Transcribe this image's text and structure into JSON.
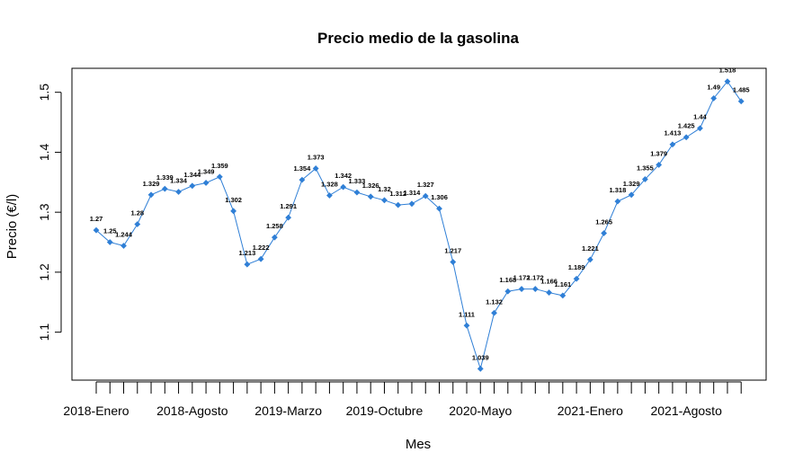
{
  "chart_data": {
    "type": "line",
    "title": "Precio medio de la gasolina",
    "xlabel": "Mes",
    "ylabel": "Precio (€/l)",
    "ylim": [
      1.02,
      1.54
    ],
    "y_ticks": [
      1.1,
      1.2,
      1.3,
      1.4,
      1.5
    ],
    "x_tick_labels": [
      {
        "index": 0,
        "label": "2018-Enero"
      },
      {
        "index": 7,
        "label": "2018-Agosto"
      },
      {
        "index": 14,
        "label": "2019-Marzo"
      },
      {
        "index": 21,
        "label": "2019-Octubre"
      },
      {
        "index": 28,
        "label": "2020-Mayo"
      },
      {
        "index": 36,
        "label": "2021-Enero"
      },
      {
        "index": 43,
        "label": "2021-Agosto"
      }
    ],
    "series_color": "#2f7fd6",
    "series": [
      {
        "values": [
          1.27,
          1.25,
          1.244,
          1.28,
          1.329,
          1.339,
          1.334,
          1.344,
          1.349,
          1.359,
          1.302,
          1.213,
          1.222,
          1.258,
          1.291,
          1.354,
          1.373,
          1.328,
          1.342,
          1.333,
          1.326,
          1.32,
          1.312,
          1.314,
          1.327,
          1.306,
          1.217,
          1.111,
          1.039,
          1.132,
          1.168,
          1.172,
          1.172,
          1.166,
          1.161,
          1.189,
          1.221,
          1.265,
          1.318,
          1.329,
          1.355,
          1.379,
          1.413,
          1.425,
          1.44,
          1.49,
          1.518,
          1.485
        ],
        "labels": [
          "1.27",
          "1.25",
          "1.244",
          "1.28",
          "1.329",
          "1.339",
          "1.334",
          "1.344",
          "1.349",
          "1.359",
          "1.302",
          "1.213",
          "1.222",
          "1.258",
          "1.291",
          "1.354",
          "1.373",
          "1.328",
          "1.342",
          "1.333",
          "1.326",
          "1.32",
          "1.312",
          "1.314",
          "1.327",
          "1.306",
          "1.217",
          "1.111",
          "1.039",
          "1.132",
          "1.168",
          "1.172",
          "1.172",
          "1.166",
          "1.161",
          "1.189",
          "1.221",
          "1.265",
          "1.318",
          "1.329",
          "1.355",
          "1.379",
          "1.413",
          "1.425",
          "1.44",
          "1.49",
          "1.518",
          "1.485"
        ]
      }
    ]
  }
}
